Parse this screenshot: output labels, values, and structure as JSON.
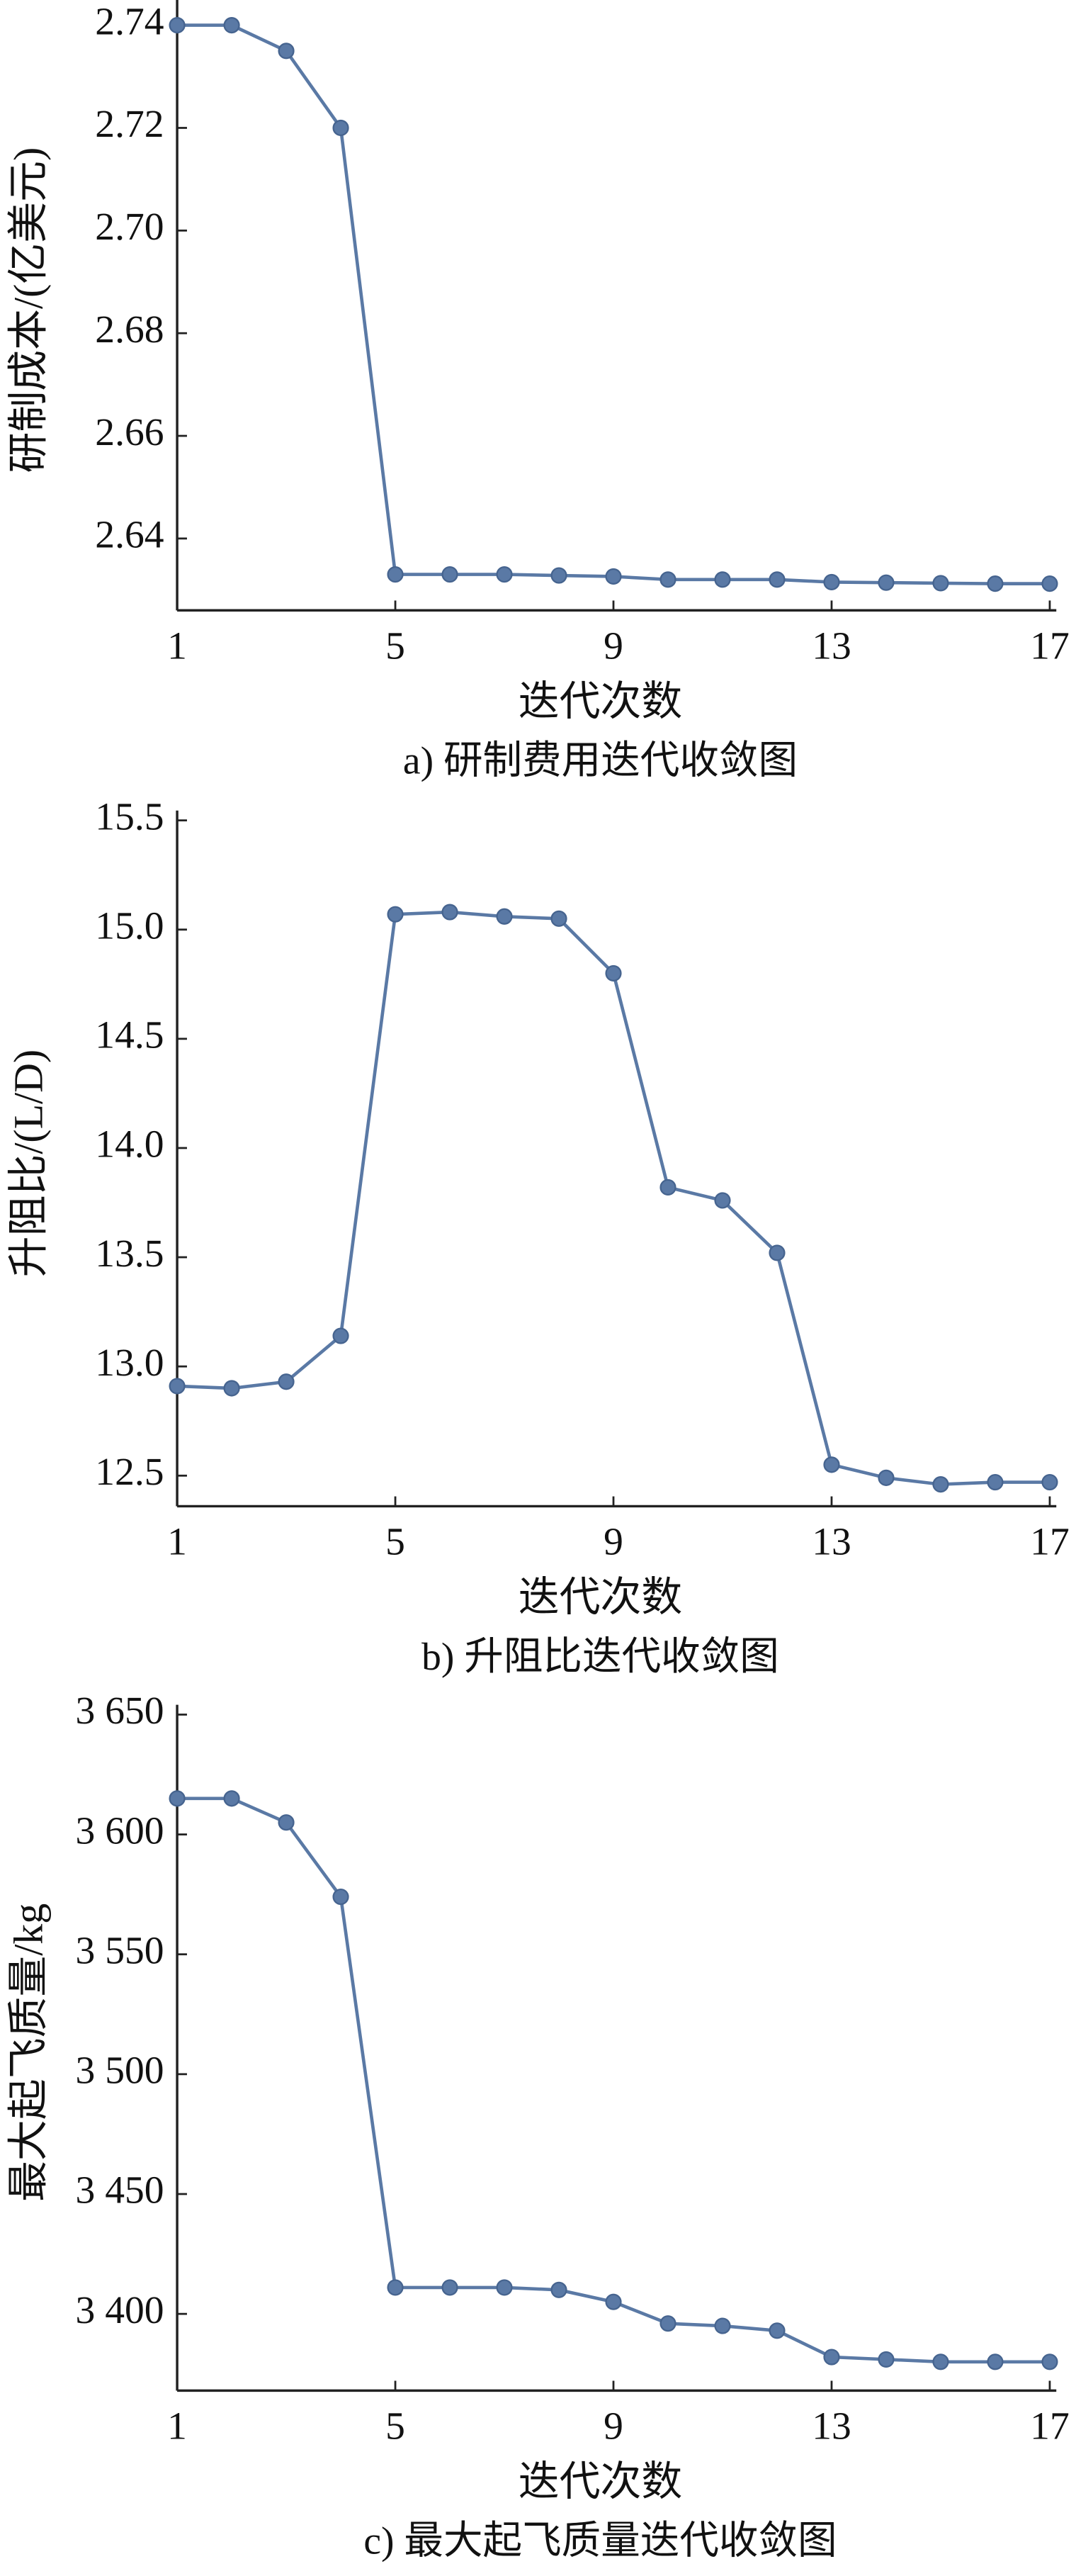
{
  "chart_data": [
    {
      "type": "line",
      "caption": "a) 研制费用迭代收敛图",
      "x_label": "迭代次数",
      "y_label": "研制成本/(亿美元)",
      "x": [
        1,
        2,
        3,
        4,
        5,
        6,
        7,
        8,
        9,
        10,
        11,
        12,
        13,
        14,
        15,
        16,
        17
      ],
      "series": [
        {
          "color": "#5a79a5",
          "values": [
            2.74,
            2.74,
            2.735,
            2.72,
            2.633,
            2.633,
            2.633,
            2.6328,
            2.6326,
            2.632,
            2.632,
            2.632,
            2.6315,
            2.6314,
            2.6313,
            2.6312,
            2.6312
          ]
        }
      ],
      "xlim": [
        1,
        17
      ],
      "xticks": [
        1,
        5,
        9,
        13,
        17
      ],
      "ylim": [
        2.626,
        2.743
      ],
      "yticks": [
        2.64,
        2.66,
        2.68,
        {
          "value": 2.7,
          "label": "2.70"
        },
        2.72,
        2.74
      ]
    },
    {
      "type": "line",
      "caption": "b) 升阻比迭代收敛图",
      "x_label": "迭代次数",
      "y_label": "升阻比/(L/D)",
      "x": [
        1,
        2,
        3,
        4,
        5,
        6,
        7,
        8,
        9,
        10,
        11,
        12,
        13,
        14,
        15,
        16,
        17
      ],
      "series": [
        {
          "color": "#5a79a5",
          "values": [
            12.91,
            12.9,
            12.93,
            13.14,
            15.07,
            15.08,
            15.06,
            15.05,
            14.8,
            13.82,
            13.76,
            13.52,
            12.55,
            12.49,
            12.46,
            12.47,
            12.47
          ]
        }
      ],
      "xlim": [
        1,
        17
      ],
      "xticks": [
        1,
        5,
        9,
        13,
        17
      ],
      "ylim": [
        12.36,
        15.5
      ],
      "yticks": [
        12.5,
        {
          "value": 13,
          "label": "13.0"
        },
        13.5,
        {
          "value": 14,
          "label": "14.0"
        },
        14.5,
        {
          "value": 15,
          "label": "15.0"
        },
        15.5
      ]
    },
    {
      "type": "line",
      "caption": "c) 最大起飞质量迭代收敛图",
      "x_label": "迭代次数",
      "y_label": "最大起飞质量/kg",
      "x": [
        1,
        2,
        3,
        4,
        5,
        6,
        7,
        8,
        9,
        10,
        11,
        12,
        13,
        14,
        15,
        16,
        17
      ],
      "series": [
        {
          "color": "#5a79a5",
          "values": [
            3615,
            3615,
            3605,
            3574,
            3411,
            3411,
            3411,
            3410,
            3405,
            3396,
            3395,
            3393,
            3382,
            3381,
            3380,
            3380,
            3380
          ]
        }
      ],
      "xlim": [
        1,
        17
      ],
      "xticks": [
        1,
        5,
        9,
        13,
        17
      ],
      "ylim": [
        3368,
        3650
      ],
      "yticks": [
        {
          "value": 3400,
          "label": "3 400"
        },
        {
          "value": 3450,
          "label": "3 450"
        },
        {
          "value": 3500,
          "label": "3 500"
        },
        {
          "value": 3550,
          "label": "3 550"
        },
        {
          "value": 3600,
          "label": "3 600"
        },
        {
          "value": 3650,
          "label": "3 650"
        }
      ]
    }
  ]
}
